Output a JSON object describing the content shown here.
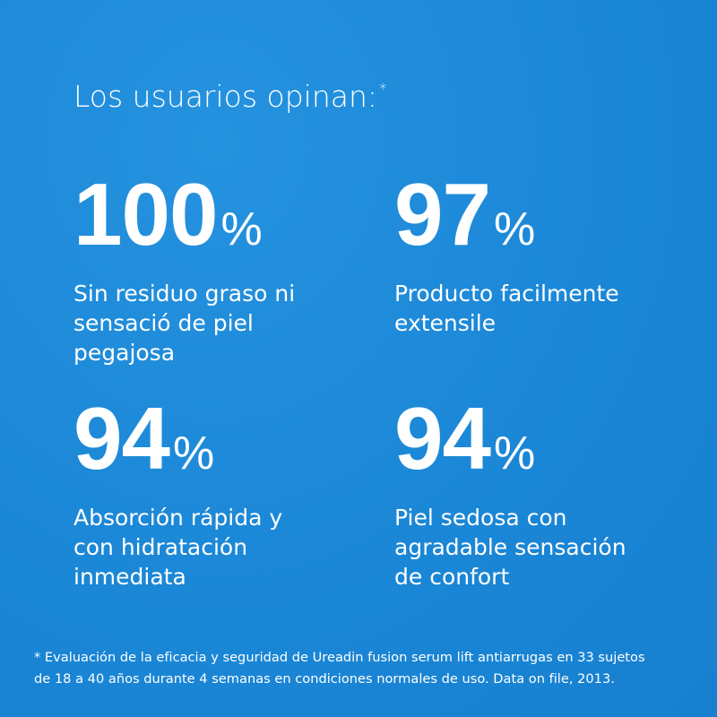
{
  "header": {
    "title": "Los usuarios opinan:",
    "title_mark": "*"
  },
  "stats": [
    {
      "value": 100,
      "unit": "%",
      "lines": [
        "Sin residuo graso ni",
        "sensació de piel",
        "pegajosa"
      ]
    },
    {
      "value": 97,
      "unit": "%",
      "lines": [
        "Producto facilmente",
        "extensile"
      ]
    },
    {
      "value": 94,
      "unit": "%",
      "lines": [
        "Absorción rápida y",
        "con hidratación",
        "inmediata"
      ]
    },
    {
      "value": 94,
      "unit": "%",
      "lines": [
        "Piel sedosa con",
        "agradable sensación",
        "de confort"
      ]
    }
  ],
  "footnote": {
    "lines": [
      "* Evaluación de la eficacia y seguridad de Ureadin fusion serum lift antiarrugas en 33 sujetos",
      "de 18 a 40 años durante 4 semanas en condiciones normales de uso. Data on file, 2013."
    ]
  }
}
